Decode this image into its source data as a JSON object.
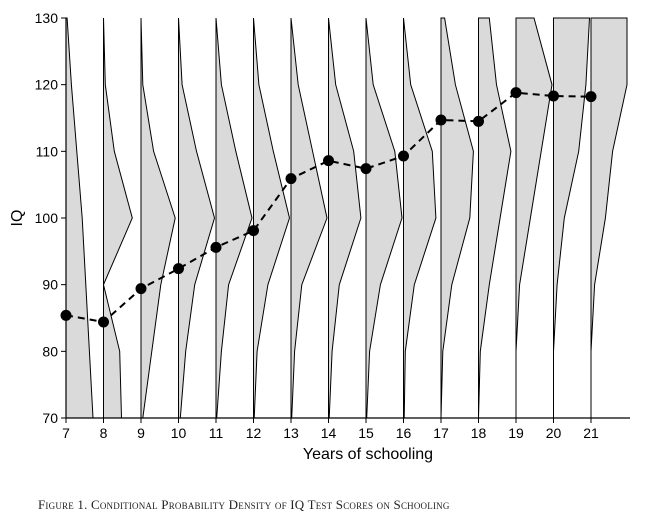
{
  "chart_data": {
    "type": "line",
    "xlabel": "Years of schooling",
    "ylabel": "IQ",
    "x": [
      7,
      8,
      9,
      10,
      11,
      12,
      13,
      14,
      15,
      16,
      17,
      18,
      19,
      20,
      21
    ],
    "series": [
      {
        "values": [
          85.4,
          84.4,
          89.4,
          92.4,
          95.6,
          98.1,
          105.9,
          108.6,
          107.4,
          109.3,
          114.7,
          114.5,
          118.8,
          118.3,
          118.2
        ]
      }
    ],
    "densities": [
      {
        "x": 7,
        "widths": [
          [
            70,
            0.75
          ],
          [
            80,
            0.65
          ],
          [
            90,
            0.55
          ],
          [
            100,
            0.45
          ],
          [
            110,
            0.3
          ],
          [
            120,
            0.15
          ],
          [
            130,
            0.03
          ]
        ]
      },
      {
        "x": 8,
        "widths": [
          [
            70,
            0.5
          ],
          [
            80,
            0.45
          ],
          [
            90,
            0.0
          ],
          [
            100,
            0.8
          ],
          [
            110,
            0.3
          ],
          [
            120,
            0.05
          ],
          [
            130,
            0.0
          ]
        ]
      },
      {
        "x": 9,
        "widths": [
          [
            70,
            0.05
          ],
          [
            80,
            0.3
          ],
          [
            90,
            0.55
          ],
          [
            100,
            0.95
          ],
          [
            110,
            0.35
          ],
          [
            120,
            0.05
          ],
          [
            130,
            0.0
          ]
        ]
      },
      {
        "x": 10,
        "widths": [
          [
            70,
            0.05
          ],
          [
            80,
            0.2
          ],
          [
            90,
            0.45
          ],
          [
            100,
            1.0
          ],
          [
            110,
            0.5
          ],
          [
            120,
            0.1
          ],
          [
            130,
            0.0
          ]
        ]
      },
      {
        "x": 11,
        "widths": [
          [
            70,
            0.02
          ],
          [
            80,
            0.15
          ],
          [
            90,
            0.35
          ],
          [
            100,
            1.0
          ],
          [
            110,
            0.55
          ],
          [
            120,
            0.15
          ],
          [
            130,
            0.0
          ]
        ]
      },
      {
        "x": 12,
        "widths": [
          [
            70,
            0.02
          ],
          [
            80,
            0.1
          ],
          [
            90,
            0.4
          ],
          [
            100,
            1.0
          ],
          [
            110,
            0.55
          ],
          [
            120,
            0.15
          ],
          [
            130,
            0.0
          ]
        ]
      },
      {
        "x": 13,
        "widths": [
          [
            70,
            0.02
          ],
          [
            80,
            0.1
          ],
          [
            90,
            0.3
          ],
          [
            100,
            1.0
          ],
          [
            110,
            0.6
          ],
          [
            120,
            0.2
          ],
          [
            130,
            0.0
          ]
        ]
      },
      {
        "x": 14,
        "widths": [
          [
            70,
            0.02
          ],
          [
            80,
            0.1
          ],
          [
            90,
            0.3
          ],
          [
            100,
            0.9
          ],
          [
            110,
            0.7
          ],
          [
            120,
            0.2
          ],
          [
            130,
            0.0
          ]
        ]
      },
      {
        "x": 15,
        "widths": [
          [
            70,
            0.02
          ],
          [
            80,
            0.1
          ],
          [
            90,
            0.4
          ],
          [
            100,
            1.0
          ],
          [
            110,
            0.8
          ],
          [
            120,
            0.2
          ],
          [
            130,
            0.0
          ]
        ]
      },
      {
        "x": 16,
        "widths": [
          [
            70,
            0.02
          ],
          [
            80,
            0.05
          ],
          [
            90,
            0.3
          ],
          [
            100,
            0.9
          ],
          [
            110,
            0.8
          ],
          [
            120,
            0.2
          ],
          [
            130,
            0.0
          ]
        ]
      },
      {
        "x": 17,
        "widths": [
          [
            70,
            0.0
          ],
          [
            80,
            0.05
          ],
          [
            90,
            0.3
          ],
          [
            100,
            0.8
          ],
          [
            110,
            0.9
          ],
          [
            120,
            0.4
          ],
          [
            130,
            0.1
          ]
        ]
      },
      {
        "x": 18,
        "widths": [
          [
            70,
            0.0
          ],
          [
            80,
            0.05
          ],
          [
            90,
            0.3
          ],
          [
            100,
            0.6
          ],
          [
            110,
            0.9
          ],
          [
            120,
            0.5
          ],
          [
            130,
            0.3
          ]
        ]
      },
      {
        "x": 19,
        "widths": [
          [
            70,
            0.0
          ],
          [
            80,
            0.0
          ],
          [
            90,
            0.1
          ],
          [
            100,
            0.4
          ],
          [
            110,
            0.7
          ],
          [
            120,
            1.0
          ],
          [
            130,
            0.5
          ]
        ]
      },
      {
        "x": 20,
        "widths": [
          [
            70,
            0.0
          ],
          [
            80,
            0.0
          ],
          [
            90,
            0.1
          ],
          [
            100,
            0.3
          ],
          [
            110,
            0.7
          ],
          [
            120,
            0.9
          ],
          [
            130,
            1.0
          ]
        ]
      },
      {
        "x": 21,
        "widths": [
          [
            70,
            0.0
          ],
          [
            80,
            0.0
          ],
          [
            90,
            0.1
          ],
          [
            100,
            0.4
          ],
          [
            110,
            0.6
          ],
          [
            120,
            1.0
          ],
          [
            130,
            1.0
          ]
        ]
      }
    ],
    "xlim": [
      7,
      21
    ],
    "ylim": [
      70,
      130
    ],
    "xticks": [
      7,
      8,
      9,
      10,
      11,
      12,
      13,
      14,
      15,
      16,
      17,
      18,
      19,
      20,
      21
    ],
    "yticks": [
      70,
      80,
      90,
      100,
      110,
      120,
      130
    ],
    "grid": false,
    "colors": {
      "fill": "#dadada",
      "stroke": "#000000",
      "marker": "#000000"
    }
  },
  "caption": "Figure 1. Conditional Probability Density of IQ Test Scores on Schooling"
}
